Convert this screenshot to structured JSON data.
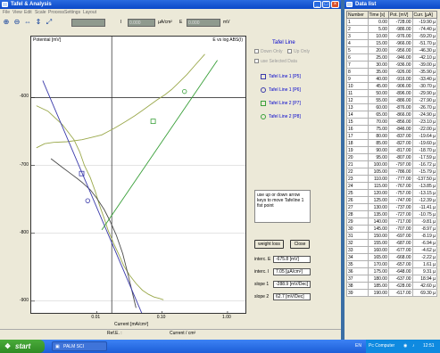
{
  "main_window": {
    "title": "Tafel & Analysis",
    "menu": [
      "File",
      "View",
      "Edit",
      "Scale",
      "Process",
      "Settings",
      "Layout"
    ],
    "toolbar": {
      "icons": [
        "zoom-in-icon",
        "zoom-out-icon",
        "fit-x-icon",
        "fit-y-icon",
        "fit-all-icon"
      ],
      "i_label": "I",
      "i_value": "0.000",
      "i_unit": "µA/cm²",
      "e_label": "E",
      "e_value": "0.000",
      "e_unit": "mV"
    }
  },
  "chart_data": {
    "type": "line",
    "title": "",
    "ylabel": "Potential [mV]",
    "xlabel": "Current [mA/cm²]",
    "corner_label": "E vs log ABS(I)",
    "xscale": "log",
    "xlim": [
      0.001,
      2.0
    ],
    "ylim": [
      -920,
      -510
    ],
    "x_ticks": [
      {
        "value": 0.01,
        "label": "0.01"
      },
      {
        "value": 0.1,
        "label": "0.10"
      },
      {
        "value": 1.0,
        "label": "1.00"
      }
    ],
    "y_ticks": [
      {
        "value": -600,
        "label": "-600"
      },
      {
        "value": -700,
        "label": "-700"
      },
      {
        "value": -800,
        "label": "-800"
      },
      {
        "value": -900,
        "label": "-900"
      }
    ],
    "vertical_marker": 0.017,
    "horizontal_marker": -600,
    "series": [
      {
        "color": "#9aa84a",
        "x": [
          0.0012,
          0.0016,
          0.0022,
          0.0035,
          0.006,
          0.009,
          0.012,
          0.015,
          0.018,
          0.022,
          0.028,
          0.038,
          0.05,
          0.065,
          0.085,
          0.11,
          0.14,
          0.18,
          0.24,
          0.32,
          0.45
        ],
        "y": [
          -674,
          -668,
          -666,
          -665,
          -662,
          -658,
          -655,
          -650,
          -646,
          -641,
          -635,
          -627,
          -619,
          -611,
          -603,
          -596,
          -588,
          -578,
          -566,
          -552,
          -536
        ]
      },
      {
        "color": "#9aa84a",
        "x": [
          0.0012,
          0.0018,
          0.003,
          0.0045,
          0.0055,
          0.0065,
          0.008,
          0.0095,
          0.011,
          0.013,
          0.015,
          0.018,
          0.022,
          0.026,
          0.032,
          0.04,
          0.05,
          0.062,
          0.075,
          0.09,
          0.105
        ],
        "y": [
          -612,
          -620,
          -640,
          -662,
          -680,
          -700,
          -718,
          -738,
          -758,
          -778,
          -796,
          -814,
          -832,
          -848,
          -862,
          -874,
          -884,
          -890,
          -894,
          -896,
          -898
        ]
      },
      {
        "color": "#4a4a4a",
        "x": [
          0.002,
          0.003,
          0.004,
          0.005,
          0.006,
          0.008,
          0.01,
          0.013,
          0.016,
          0.02,
          0.025,
          0.03,
          0.04
        ],
        "y": [
          -690,
          -703,
          -712,
          -719,
          -725,
          -736,
          -748,
          -765,
          -782,
          -803,
          -830,
          -860,
          -910
        ]
      }
    ],
    "tafel_lines": [
      {
        "label": "Tafel Line 1",
        "color": "#3a3aaa",
        "points": [
          [
            0.0015,
            -575
          ],
          [
            0.05,
            -920
          ]
        ]
      },
      {
        "label": "Tafel Line 2",
        "color": "#3aa03a",
        "points": [
          [
            0.012,
            -795
          ],
          [
            0.7,
            -545
          ]
        ]
      }
    ],
    "markers": [
      {
        "name": "P5",
        "shape": "square",
        "color": "#3a3aaa",
        "x": 0.0059,
        "y": -712
      },
      {
        "name": "P6",
        "shape": "circle",
        "color": "#3a3aaa",
        "x": 0.0073,
        "y": -752
      },
      {
        "name": "P7",
        "shape": "square",
        "color": "#3aa03a",
        "x": 0.073,
        "y": -635
      },
      {
        "name": "P8",
        "shape": "circle",
        "color": "#3aa03a",
        "x": 0.22,
        "y": -591
      }
    ]
  },
  "right_panel": {
    "title": "Tafel Line",
    "option_down": "Down Only",
    "option_up": "Up Only",
    "option_use_selected": "use Selected Data",
    "lines": [
      {
        "label": "Tafel Line 1 [P5]",
        "shape": "square",
        "color": "#3a3aaa"
      },
      {
        "label": "Tafel Line 1 [P6]",
        "shape": "circle",
        "color": "#3a3aaa"
      },
      {
        "label": "Tafel Line 2 [P7]",
        "shape": "square",
        "color": "#3aa03a"
      },
      {
        "label": "Tafel Line 2 [P8]",
        "shape": "circle",
        "color": "#3aa03a"
      }
    ],
    "info_text": "use up or down arrow keys to move TafeIine 1 fist point",
    "weight_loss_button": "weight loss",
    "close_button": "Close",
    "results": [
      {
        "label": "interc. E",
        "value": "-675.8 [mV]"
      },
      {
        "label": "interc. I",
        "value": "7.05 [µA/cm²]"
      },
      {
        "label": "slope 1",
        "value": "-288.9 [mV/Dec]"
      },
      {
        "label": "slope 2",
        "value": "62.7 [mV/Dec]"
      }
    ]
  },
  "status_bar": {
    "ref_label": "Ref.E. :",
    "current_label": "Current / cm²"
  },
  "data_window": {
    "title": "Data list",
    "columns": [
      "Number",
      "Time [s]",
      "Pot. [mV]",
      "Curr. [µA]"
    ],
    "rows": [
      [
        "1",
        "0.00",
        "-728.00",
        "-19.90 µ"
      ],
      [
        "2",
        "5.00",
        "-986.00",
        "-74.40 µ"
      ],
      [
        "3",
        "10.00",
        "-976.00",
        "-59.20 µ"
      ],
      [
        "4",
        "15.00",
        "-966.00",
        "-51.70 µ"
      ],
      [
        "5",
        "20.00",
        "-956.00",
        "-46.30 µ"
      ],
      [
        "6",
        "25.00",
        "-946.00",
        "-42.10 µ"
      ],
      [
        "7",
        "30.00",
        "-936.00",
        "-39.00 µ"
      ],
      [
        "8",
        "35.00",
        "-926.00",
        "-35.90 µ"
      ],
      [
        "9",
        "40.00",
        "-916.00",
        "-33.40 µ"
      ],
      [
        "10",
        "45.00",
        "-906.00",
        "-30.70 µ"
      ],
      [
        "11",
        "50.00",
        "-896.00",
        "-29.90 µ"
      ],
      [
        "12",
        "55.00",
        "-886.00",
        "-27.90 µ"
      ],
      [
        "13",
        "60.00",
        "-876.00",
        "-26.70 µ"
      ],
      [
        "14",
        "65.00",
        "-866.00",
        "-24.90 µ"
      ],
      [
        "15",
        "70.00",
        "-856.00",
        "-23.10 µ"
      ],
      [
        "16",
        "75.00",
        "-846.00",
        "-22.00 µ"
      ],
      [
        "17",
        "80.00",
        "-837.00",
        "-19.64 µ"
      ],
      [
        "18",
        "85.00",
        "-827.00",
        "-19.60 µ"
      ],
      [
        "19",
        "90.00",
        "-817.00",
        "-18.70 µ"
      ],
      [
        "20",
        "95.00",
        "-807.00",
        "-17.59 µ"
      ],
      [
        "21",
        "100.00",
        "-797.00",
        "-16.72 µ"
      ],
      [
        "22",
        "105.00",
        "-786.00",
        "-15.79 µ"
      ],
      [
        "23",
        "110.00",
        "-777.00",
        "-137.50 µ"
      ],
      [
        "24",
        "115.00",
        "-767.00",
        "-13.85 µ"
      ],
      [
        "25",
        "120.00",
        "-757.00",
        "-13.15 µ"
      ],
      [
        "26",
        "125.00",
        "-747.00",
        "-12.39 µ"
      ],
      [
        "27",
        "130.00",
        "-737.00",
        "-11.41 µ"
      ],
      [
        "28",
        "135.00",
        "-727.00",
        "-10.75 µ"
      ],
      [
        "29",
        "140.00",
        "-717.00",
        "-9.81 µ"
      ],
      [
        "30",
        "145.00",
        "-707.00",
        "-8.97 µ"
      ],
      [
        "31",
        "150.00",
        "-697.00",
        "-8.19 µ"
      ],
      [
        "32",
        "155.00",
        "-687.00",
        "-6.94 µ"
      ],
      [
        "33",
        "160.00",
        "-677.00",
        "-4.62 µ"
      ],
      [
        "34",
        "165.00",
        "-668.00",
        "-2.22 µ"
      ],
      [
        "35",
        "170.00",
        "-657.00",
        "1.61 µ"
      ],
      [
        "36",
        "175.00",
        "-648.00",
        "9.31 µ"
      ],
      [
        "37",
        "180.00",
        "-637.00",
        "18.94 µ"
      ],
      [
        "38",
        "185.00",
        "-628.00",
        "42.60 µ"
      ],
      [
        "39",
        "190.00",
        "-617.00",
        "69.30 µ"
      ]
    ]
  },
  "taskbar": {
    "start_label": "start",
    "task_label": "PALM SCI",
    "lang": "EN",
    "tray_text": "Pc Computer",
    "clock": "12:51"
  }
}
